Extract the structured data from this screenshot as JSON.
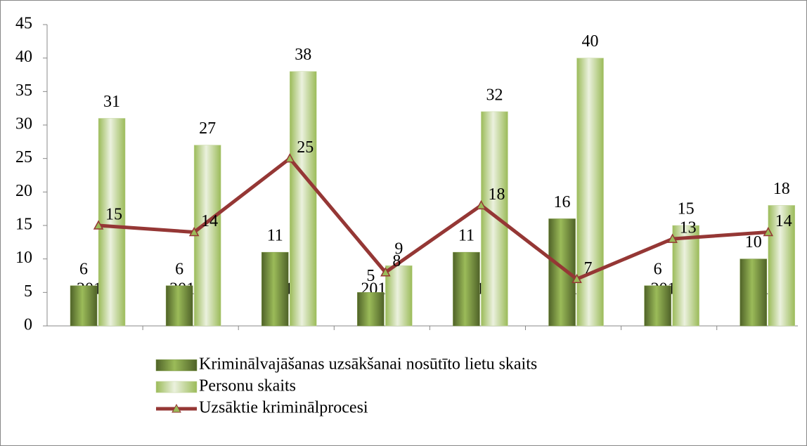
{
  "chart_data": {
    "type": "bar",
    "categories": [
      "2012 I",
      "2012 II",
      "2013 I",
      "2013 II",
      "2014 I",
      "2014 II",
      "2015 I",
      "2015 II"
    ],
    "series": [
      {
        "name": "Kriminālvajāšanas uzsākšanai nosūtīto lietu skaits",
        "color": "#77933c",
        "values": [
          6,
          6,
          11,
          5,
          11,
          16,
          6,
          10
        ]
      },
      {
        "name": "Personu skaits",
        "color": "#c3d69b",
        "values": [
          31,
          27,
          38,
          9,
          32,
          40,
          15,
          18
        ]
      },
      {
        "name": "Uzsāktie kriminālprocesi",
        "color": "#953735",
        "type": "line",
        "values": [
          15,
          14,
          25,
          8,
          18,
          7,
          13,
          14
        ]
      }
    ],
    "ylim": [
      0,
      45
    ],
    "yticks": [
      0,
      5,
      10,
      15,
      20,
      25,
      30,
      35,
      40,
      45
    ]
  }
}
